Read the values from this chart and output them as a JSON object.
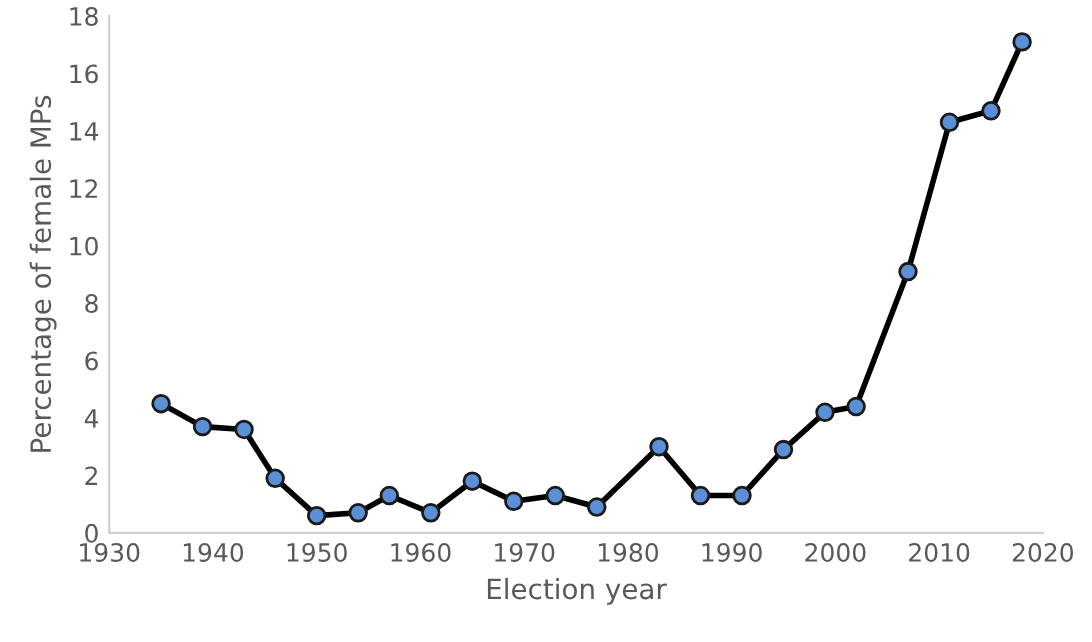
{
  "chart_data": {
    "type": "line",
    "xlabel": "Election year",
    "ylabel": "Percentage of female MPs",
    "x": [
      1935,
      1939,
      1943,
      1946,
      1950,
      1954,
      1957,
      1961,
      1965,
      1969,
      1973,
      1977,
      1983,
      1987,
      1991,
      1995,
      1999,
      2002,
      2007,
      2011,
      2015,
      2018
    ],
    "series": [
      {
        "color": "#000000",
        "values": [
          4.5,
          3.7,
          3.6,
          1.9,
          0.6,
          0.7,
          1.3,
          0.7,
          1.8,
          1.1,
          1.3,
          0.9,
          3.0,
          1.3,
          1.3,
          2.9,
          4.2,
          4.4,
          9.1,
          14.3,
          14.7,
          17.1
        ]
      }
    ],
    "marker": "circle",
    "line_style": "solid",
    "grid": false,
    "legend": false,
    "xlim": [
      1930,
      2020
    ],
    "xticks": [
      1930,
      1940,
      1950,
      1960,
      1970,
      1980,
      1990,
      2000,
      2010,
      2020
    ],
    "ylim": [
      0,
      18
    ],
    "yticks": [
      0,
      2,
      4,
      6,
      8,
      10,
      12,
      14,
      16,
      18
    ]
  }
}
